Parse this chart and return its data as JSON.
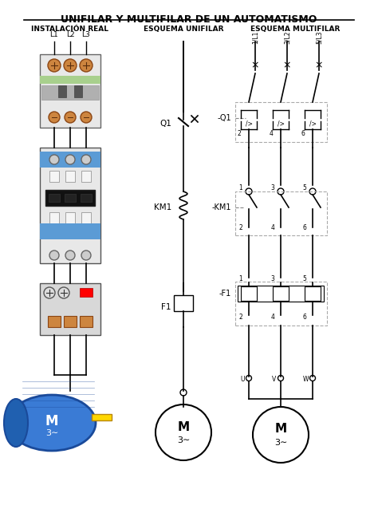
{
  "title": "UNIFILAR Y MULTIFILAR DE UN AUTOMATISMO",
  "col1_header": "INSTALACIÓN REAL",
  "col2_header": "ESQUEMA UNIFILAR",
  "col3_header": "ESQUEMA MULTIFILAR",
  "bg_color": "#ffffff",
  "text_color": "#000000",
  "line_color": "#000000",
  "L_labels": [
    "L1",
    "L2",
    "L3"
  ],
  "top_labels": [
    "1/L1",
    "3/L2",
    "5/L3"
  ],
  "q1_bottom": [
    "2",
    "4",
    "6"
  ],
  "km1_top": [
    "1",
    "3",
    "5"
  ],
  "km1_bottom": [
    "2",
    "4",
    "6"
  ],
  "f1_top": [
    "1",
    "3",
    "5"
  ],
  "f1_bottom": [
    "2",
    "4",
    "6"
  ],
  "output_labels": [
    "U",
    "V",
    "W"
  ],
  "q1_label": "Q1",
  "km1_label": "KM1",
  "f1_label": "F1",
  "mq1_label": "-Q1",
  "mkm1_label": "-KM1",
  "mf1_label": "-F1",
  "motor_label": "M",
  "motor_sublabel": "3∼",
  "blue_motor": "#3a7bd5",
  "blue_light": "#5b9bd5",
  "green_bar": "#a8d08d",
  "contact_color": "#c8c8c8",
  "orange_term": "#cd853f",
  "gray_device": "#d0d0d0"
}
